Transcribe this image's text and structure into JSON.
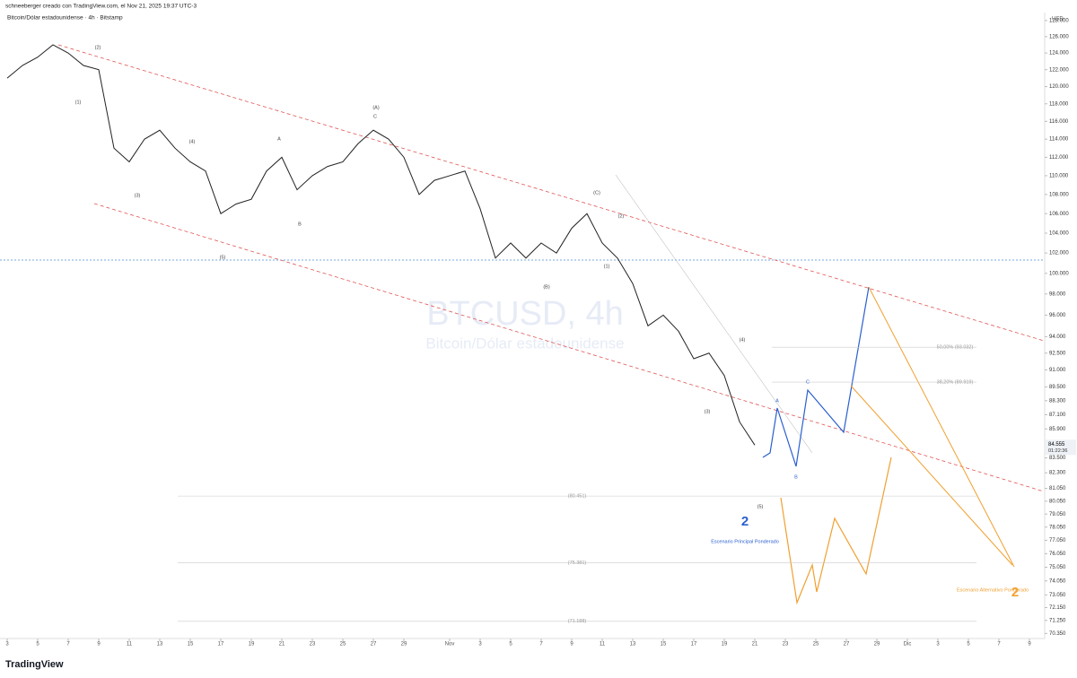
{
  "header": {
    "author_line": "schneeberger creado con TradingView.com, el Nov 21, 2025 19:37 UTC-3",
    "symbol_line": "Bitcoin/Dólar estadounidense · 4h · Bitstamp",
    "watermark": "BTCUSD, 4h",
    "watermark_sub": "Bitcoin/Dólar estadounidense",
    "currency": "USD",
    "logo": "TradingView"
  },
  "chart_data": {
    "type": "line",
    "color": "#222222",
    "log_scale": true,
    "x": [
      "2025-10-03",
      "2025-10-04",
      "2025-10-05",
      "2025-10-06",
      "2025-10-07",
      "2025-10-08",
      "2025-10-09",
      "2025-10-10",
      "2025-10-11",
      "2025-10-12",
      "2025-10-13",
      "2025-10-14",
      "2025-10-15",
      "2025-10-16",
      "2025-10-17",
      "2025-10-18",
      "2025-10-19",
      "2025-10-20",
      "2025-10-21",
      "2025-10-22",
      "2025-10-23",
      "2025-10-24",
      "2025-10-25",
      "2025-10-26",
      "2025-10-27",
      "2025-10-28",
      "2025-10-29",
      "2025-10-30",
      "2025-10-31",
      "2025-11-01",
      "2025-11-02",
      "2025-11-03",
      "2025-11-04",
      "2025-11-05",
      "2025-11-06",
      "2025-11-07",
      "2025-11-08",
      "2025-11-09",
      "2025-11-10",
      "2025-11-11",
      "2025-11-12",
      "2025-11-13",
      "2025-11-14",
      "2025-11-15",
      "2025-11-16",
      "2025-11-17",
      "2025-11-18",
      "2025-11-19",
      "2025-11-20",
      "2025-11-21"
    ],
    "series": [
      {
        "name": "BTCUSD",
        "color": "#222222",
        "values": [
          121,
          122.5,
          123.5,
          125,
          124,
          122.5,
          122,
          113,
          111.5,
          114,
          115,
          113,
          111.5,
          110.5,
          106,
          107,
          107.5,
          110.5,
          112,
          108.5,
          110,
          111,
          111.5,
          113.5,
          115,
          114,
          112,
          108,
          109.5,
          110,
          110.5,
          106.5,
          101.5,
          103,
          101.5,
          103,
          102,
          104.5,
          106,
          103,
          101.5,
          99,
          95,
          96,
          94.5,
          92,
          92.5,
          90.5,
          86.5,
          84.555
        ]
      }
    ],
    "last_price": {
      "value": 84.555,
      "label": "84.555",
      "countdown": "01:22:36"
    },
    "xlim": [
      "2025-10-03",
      "2025-12-10"
    ],
    "xticks": [
      {
        "value": "2025-10-03",
        "label": "3"
      },
      {
        "value": "2025-10-05",
        "label": "5"
      },
      {
        "value": "2025-10-07",
        "label": "7"
      },
      {
        "value": "2025-10-09",
        "label": "9"
      },
      {
        "value": "2025-10-11",
        "label": "11"
      },
      {
        "value": "2025-10-13",
        "label": "13"
      },
      {
        "value": "2025-10-15",
        "label": "15"
      },
      {
        "value": "2025-10-17",
        "label": "17"
      },
      {
        "value": "2025-10-19",
        "label": "19"
      },
      {
        "value": "2025-10-21",
        "label": "21"
      },
      {
        "value": "2025-10-23",
        "label": "23"
      },
      {
        "value": "2025-10-25",
        "label": "25"
      },
      {
        "value": "2025-10-27",
        "label": "27"
      },
      {
        "value": "2025-10-29",
        "label": "29"
      },
      {
        "value": "2025-11-01",
        "label": "Nov"
      },
      {
        "value": "2025-11-03",
        "label": "3"
      },
      {
        "value": "2025-11-05",
        "label": "5"
      },
      {
        "value": "2025-11-07",
        "label": "7"
      },
      {
        "value": "2025-11-09",
        "label": "9"
      },
      {
        "value": "2025-11-11",
        "label": "11"
      },
      {
        "value": "2025-11-13",
        "label": "13"
      },
      {
        "value": "2025-11-15",
        "label": "15"
      },
      {
        "value": "2025-11-17",
        "label": "17"
      },
      {
        "value": "2025-11-19",
        "label": "19"
      },
      {
        "value": "2025-11-21",
        "label": "21"
      },
      {
        "value": "2025-11-23",
        "label": "23"
      },
      {
        "value": "2025-11-25",
        "label": "25"
      },
      {
        "value": "2025-11-27",
        "label": "27"
      },
      {
        "value": "2025-11-29",
        "label": "29"
      },
      {
        "value": "2025-12-01",
        "label": "Dic"
      },
      {
        "value": "2025-12-03",
        "label": "3"
      },
      {
        "value": "2025-12-05",
        "label": "5"
      },
      {
        "value": "2025-12-07",
        "label": "7"
      },
      {
        "value": "2025-12-09",
        "label": "9"
      }
    ],
    "ylim": [
      70,
      129
    ],
    "yticks": [
      {
        "value": 128,
        "label": "128.000"
      },
      {
        "value": 126,
        "label": "126.000"
      },
      {
        "value": 124,
        "label": "124.000"
      },
      {
        "value": 122,
        "label": "122.000"
      },
      {
        "value": 120,
        "label": "120.000"
      },
      {
        "value": 118,
        "label": "118.000"
      },
      {
        "value": 116,
        "label": "116.000"
      },
      {
        "value": 114,
        "label": "114.000"
      },
      {
        "value": 112,
        "label": "112.000"
      },
      {
        "value": 110,
        "label": "110.000"
      },
      {
        "value": 108,
        "label": "108.000"
      },
      {
        "value": 106,
        "label": "106.000"
      },
      {
        "value": 104,
        "label": "104.000"
      },
      {
        "value": 102,
        "label": "102.000"
      },
      {
        "value": 100,
        "label": "100.000"
      },
      {
        "value": 98,
        "label": "98.000"
      },
      {
        "value": 96,
        "label": "96.000"
      },
      {
        "value": 94,
        "label": "94.000"
      },
      {
        "value": 92.5,
        "label": "92.500"
      },
      {
        "value": 91,
        "label": "91.000"
      },
      {
        "value": 89.5,
        "label": "89.500"
      },
      {
        "value": 88.3,
        "label": "88.300"
      },
      {
        "value": 87.1,
        "label": "87.100"
      },
      {
        "value": 85.9,
        "label": "85.900"
      },
      {
        "value": 83.5,
        "label": "83.500"
      },
      {
        "value": 82.3,
        "label": "82.300"
      },
      {
        "value": 81.05,
        "label": "81.050"
      },
      {
        "value": 80.05,
        "label": "80.050"
      },
      {
        "value": 79.05,
        "label": "79.050"
      },
      {
        "value": 78.05,
        "label": "78.050"
      },
      {
        "value": 77.05,
        "label": "77.050"
      },
      {
        "value": 76.05,
        "label": "76.050"
      },
      {
        "value": 75.05,
        "label": "75.050"
      },
      {
        "value": 74.05,
        "label": "74.050"
      },
      {
        "value": 73.05,
        "label": "73.050"
      },
      {
        "value": 72.15,
        "label": "72.150"
      },
      {
        "value": 71.25,
        "label": "71.250"
      },
      {
        "value": 70.35,
        "label": "70.350"
      }
    ],
    "fib_levels": [
      {
        "value": 93.032,
        "label": "50,00% (93.032)"
      },
      {
        "value": 89.919,
        "label": "38,20% (89.919)"
      },
      {
        "value": 80.451,
        "label": "(80.451)"
      },
      {
        "value": 75.381,
        "label": "(75.381)"
      },
      {
        "value": 71.188,
        "label": "(71.188)"
      }
    ],
    "annotations": [
      "(2)",
      "(1)",
      "(3)",
      "(4)",
      "(5)",
      "A",
      "B",
      "(A)",
      "C",
      "(C)",
      "(B)",
      "(2)",
      "(1)",
      "(3)",
      "(4)",
      "(5)",
      "A",
      "B",
      "C",
      "2",
      "Escenario Principal Ponderado",
      "Escenario Alternativo Ponderado",
      "2"
    ]
  }
}
